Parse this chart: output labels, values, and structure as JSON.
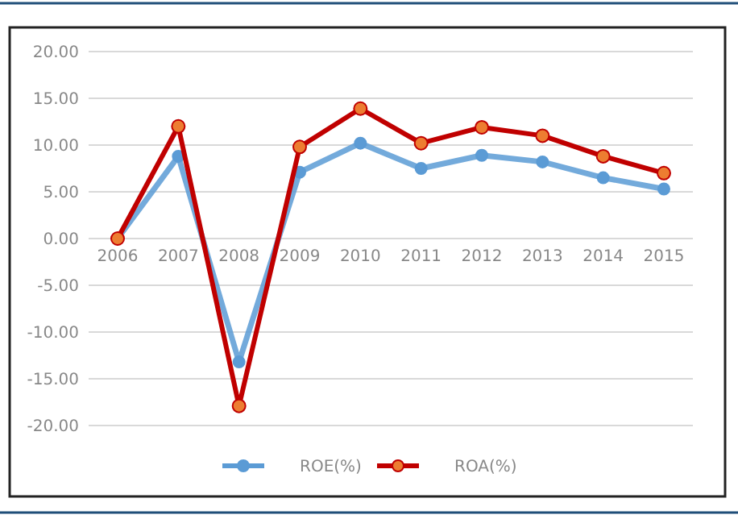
{
  "chart_data": {
    "type": "line",
    "categories": [
      "2006",
      "2007",
      "2008",
      "2009",
      "2010",
      "2011",
      "2012",
      "2013",
      "2014",
      "2015"
    ],
    "series": [
      {
        "name": "ROE(%)",
        "color": "#5b9bd5",
        "values": [
          0,
          8.8,
          -13.2,
          7.1,
          10.2,
          7.5,
          8.9,
          8.2,
          6.5,
          5.3
        ]
      },
      {
        "name": "ROA(%)",
        "color": "#c00000",
        "values": [
          0,
          12.0,
          -17.9,
          9.8,
          13.9,
          10.2,
          11.9,
          11.0,
          8.8,
          7.0
        ]
      }
    ],
    "ylim": [
      -20,
      20
    ],
    "yticks": [
      {
        "value": -20,
        "label": "-20.00"
      },
      {
        "value": -15,
        "label": "-15.00"
      },
      {
        "value": -10,
        "label": "-10.00"
      },
      {
        "value": -5,
        "label": "-5.00"
      },
      {
        "value": 0,
        "label": "0.00"
      },
      {
        "value": 5,
        "label": "5.00"
      },
      {
        "value": 10,
        "label": "10.00"
      },
      {
        "value": 15,
        "label": "15.00"
      },
      {
        "value": 20,
        "label": "20.00"
      }
    ],
    "grid": "y",
    "legend": "bottom",
    "marker": "circle",
    "line_style": "solid"
  }
}
